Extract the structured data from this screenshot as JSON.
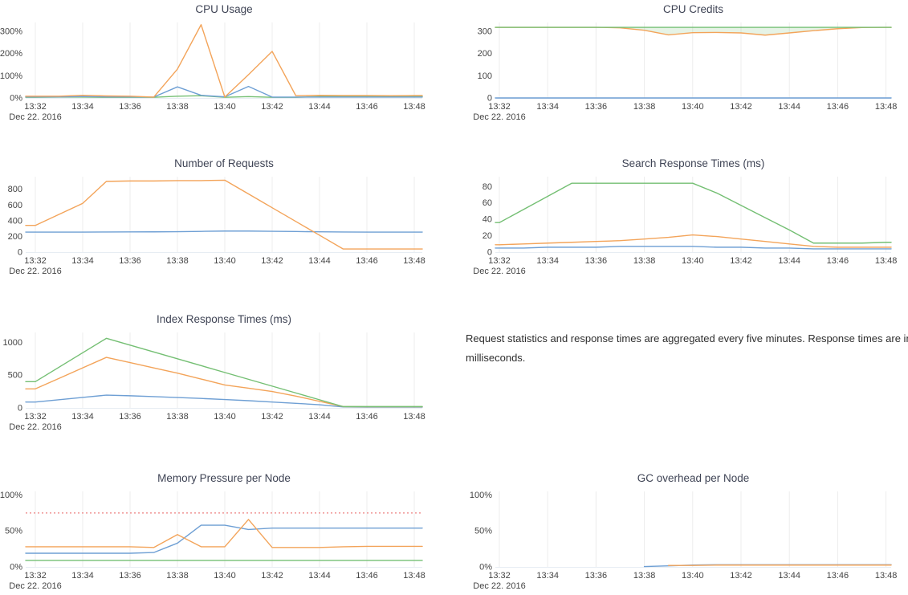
{
  "page": {
    "background": "#ffffff"
  },
  "colors": {
    "blue": "#6e9fd4",
    "orange": "#f3a45a",
    "green": "#74bf73",
    "red": "#f09c9c",
    "grid": "#ececec",
    "axis_line": "#e7edf3",
    "tick_text": "#444444",
    "title_text": "#3f4455",
    "fill_green": "rgba(116,191,115,0.18)"
  },
  "note": {
    "text": "Request statistics and response times are aggregated every five minutes. Response times are in milliseconds."
  },
  "x_axis": {
    "tick_labels": [
      "13:32",
      "13:34",
      "13:36",
      "13:38",
      "13:40",
      "13:42",
      "13:44",
      "13:46",
      "13:48"
    ],
    "date_label": "Dec 22. 2016",
    "times": [
      "13:32",
      "13:33",
      "13:34",
      "13:35",
      "13:36",
      "13:37",
      "13:38",
      "13:39",
      "13:40",
      "13:41",
      "13:42",
      "13:43",
      "13:44",
      "13:45",
      "13:46",
      "13:47",
      "13:48"
    ]
  },
  "chart_data": [
    {
      "id": "cpu-usage",
      "type": "line",
      "title": "CPU Usage",
      "col": "left",
      "ylim": [
        0,
        340
      ],
      "grid": "vertical-only",
      "legend": "none",
      "yticks": [
        {
          "v": 0,
          "label": "0%"
        },
        {
          "v": 100,
          "label": "100%"
        },
        {
          "v": 200,
          "label": "200%"
        },
        {
          "v": 300,
          "label": "300%"
        }
      ],
      "series": [
        {
          "name": "green",
          "color": "green",
          "values": [
            3,
            4,
            4,
            3,
            3,
            3,
            8,
            10,
            3,
            6,
            3,
            3,
            6,
            6,
            6,
            6,
            6
          ]
        },
        {
          "name": "blue",
          "color": "blue",
          "values": [
            5,
            5,
            6,
            5,
            5,
            4,
            50,
            12,
            5,
            52,
            4,
            4,
            4,
            4,
            4,
            4,
            4
          ]
        },
        {
          "name": "orange",
          "color": "orange",
          "values": [
            8,
            8,
            12,
            9,
            8,
            4,
            130,
            330,
            4,
            105,
            210,
            10,
            12,
            11,
            11,
            10,
            11
          ]
        }
      ]
    },
    {
      "id": "cpu-credits",
      "type": "line",
      "title": "CPU Credits",
      "col": "right",
      "ylim": [
        0,
        340
      ],
      "grid": "vertical-only",
      "legend": "none",
      "yticks": [
        {
          "v": 0,
          "label": "0"
        },
        {
          "v": 100,
          "label": "100"
        },
        {
          "v": 200,
          "label": "200"
        },
        {
          "v": 300,
          "label": "300"
        }
      ],
      "fill_between": {
        "upper": 2,
        "lower": 1,
        "color": "fill_green"
      },
      "series": [
        {
          "name": "blue",
          "color": "blue",
          "values": [
            0,
            0,
            0,
            0,
            0,
            0,
            0,
            0,
            0,
            0,
            0,
            0,
            0,
            0,
            0,
            0,
            0
          ]
        },
        {
          "name": "orange",
          "color": "orange",
          "values": [
            318,
            318,
            318,
            318,
            318,
            316,
            305,
            284,
            294,
            295,
            293,
            283,
            293,
            303,
            312,
            317,
            318
          ]
        },
        {
          "name": "green",
          "color": "green",
          "values": [
            318,
            318,
            318,
            318,
            318,
            318,
            318,
            318,
            318,
            318,
            318,
            318,
            318,
            318,
            318,
            318,
            318
          ]
        }
      ]
    },
    {
      "id": "number-of-requests",
      "type": "line",
      "title": "Number of Requests",
      "col": "left",
      "ylim": [
        0,
        960
      ],
      "grid": "vertical-only",
      "legend": "none",
      "yticks": [
        {
          "v": 0,
          "label": "0"
        },
        {
          "v": 200,
          "label": "200"
        },
        {
          "v": 400,
          "label": "400"
        },
        {
          "v": 600,
          "label": "600"
        },
        {
          "v": 800,
          "label": "800"
        }
      ],
      "series": [
        {
          "name": "blue",
          "color": "blue",
          "values": [
            255,
            255,
            255,
            256,
            257,
            258,
            260,
            264,
            268,
            268,
            265,
            262,
            258,
            256,
            255,
            255,
            255
          ]
        },
        {
          "name": "orange",
          "color": "orange",
          "values": [
            340,
            480,
            620,
            900,
            905,
            905,
            910,
            910,
            915,
            740,
            565,
            390,
            215,
            40,
            40,
            40,
            40
          ]
        }
      ]
    },
    {
      "id": "search-response-times",
      "type": "line",
      "title": "Search Response Times (ms)",
      "col": "right",
      "ylim": [
        0,
        92
      ],
      "grid": "vertical-only",
      "legend": "none",
      "yticks": [
        {
          "v": 0,
          "label": "0"
        },
        {
          "v": 20,
          "label": "20"
        },
        {
          "v": 40,
          "label": "40"
        },
        {
          "v": 60,
          "label": "60"
        },
        {
          "v": 80,
          "label": "80"
        }
      ],
      "series": [
        {
          "name": "blue",
          "color": "blue",
          "values": [
            5,
            5,
            6,
            6,
            6,
            7,
            7,
            7,
            7,
            6,
            6,
            5,
            5,
            4,
            4,
            4,
            4
          ]
        },
        {
          "name": "orange",
          "color": "orange",
          "values": [
            9,
            10,
            11,
            12,
            13,
            14,
            16,
            18,
            21,
            19,
            16,
            13,
            10,
            7,
            6,
            6,
            6
          ]
        },
        {
          "name": "green",
          "color": "green",
          "values": [
            36,
            52,
            68,
            84,
            84,
            84,
            84,
            84,
            84,
            72,
            57,
            42,
            27,
            11,
            11,
            11,
            12
          ]
        }
      ]
    },
    {
      "id": "index-response-times",
      "type": "line",
      "title": "Index Response Times (ms)",
      "col": "left",
      "ylim": [
        0,
        1150
      ],
      "grid": "vertical-only",
      "legend": "none",
      "yticks": [
        {
          "v": 0,
          "label": "0"
        },
        {
          "v": 500,
          "label": "500"
        },
        {
          "v": 1000,
          "label": "1000"
        }
      ],
      "series": [
        {
          "name": "blue",
          "color": "blue",
          "values": [
            90,
            125,
            160,
            195,
            185,
            172,
            158,
            144,
            128,
            110,
            90,
            70,
            48,
            15,
            12,
            12,
            12
          ]
        },
        {
          "name": "orange",
          "color": "orange",
          "values": [
            290,
            450,
            610,
            770,
            690,
            610,
            530,
            440,
            350,
            300,
            250,
            180,
            100,
            20,
            18,
            18,
            18
          ]
        },
        {
          "name": "green",
          "color": "green",
          "values": [
            400,
            620,
            840,
            1060,
            956,
            852,
            748,
            644,
            540,
            436,
            332,
            228,
            124,
            20,
            20,
            20,
            20
          ]
        }
      ]
    },
    {
      "id": "memory-pressure-per-node",
      "type": "line",
      "title": "Memory Pressure per Node",
      "col": "left",
      "ylim": [
        0,
        105
      ],
      "grid": "vertical-only",
      "legend": "none",
      "yticks": [
        {
          "v": 0,
          "label": "0%"
        },
        {
          "v": 50,
          "label": "50%"
        },
        {
          "v": 100,
          "label": "100%"
        }
      ],
      "threshold": {
        "value": 75,
        "style": "dotted",
        "color": "red"
      },
      "series": [
        {
          "name": "green",
          "color": "green",
          "values": [
            9,
            9,
            9,
            9,
            9,
            9,
            9,
            9,
            9,
            9,
            9,
            9,
            9,
            9,
            9,
            9,
            9
          ]
        },
        {
          "name": "blue",
          "color": "blue",
          "values": [
            19,
            19,
            19,
            19,
            19,
            20,
            33,
            58,
            58,
            52,
            54,
            54,
            54,
            54,
            54,
            54,
            54
          ]
        },
        {
          "name": "orange",
          "color": "orange",
          "values": [
            28,
            28,
            28,
            28,
            28,
            27,
            45,
            28,
            28,
            66,
            27,
            27,
            27,
            28,
            28.5,
            28.5,
            28.5
          ]
        }
      ]
    },
    {
      "id": "gc-overhead-per-node",
      "type": "line",
      "title": "GC overhead per Node",
      "col": "right",
      "ylim": [
        0,
        105
      ],
      "grid": "vertical-only",
      "legend": "none",
      "yticks": [
        {
          "v": 0,
          "label": "0%"
        },
        {
          "v": 50,
          "label": "50%"
        },
        {
          "v": 100,
          "label": "100%"
        }
      ],
      "series": [
        {
          "name": "blue",
          "color": "blue",
          "values": [
            null,
            null,
            null,
            null,
            null,
            null,
            0.5,
            1.5,
            2.5,
            3,
            3,
            3,
            3,
            3,
            3,
            3,
            3
          ]
        },
        {
          "name": "orange",
          "color": "orange",
          "values": [
            null,
            null,
            null,
            null,
            null,
            null,
            null,
            2,
            2,
            2.5,
            2.5,
            2.5,
            2.5,
            2.5,
            2.5,
            2.5,
            2.5
          ]
        }
      ]
    }
  ]
}
